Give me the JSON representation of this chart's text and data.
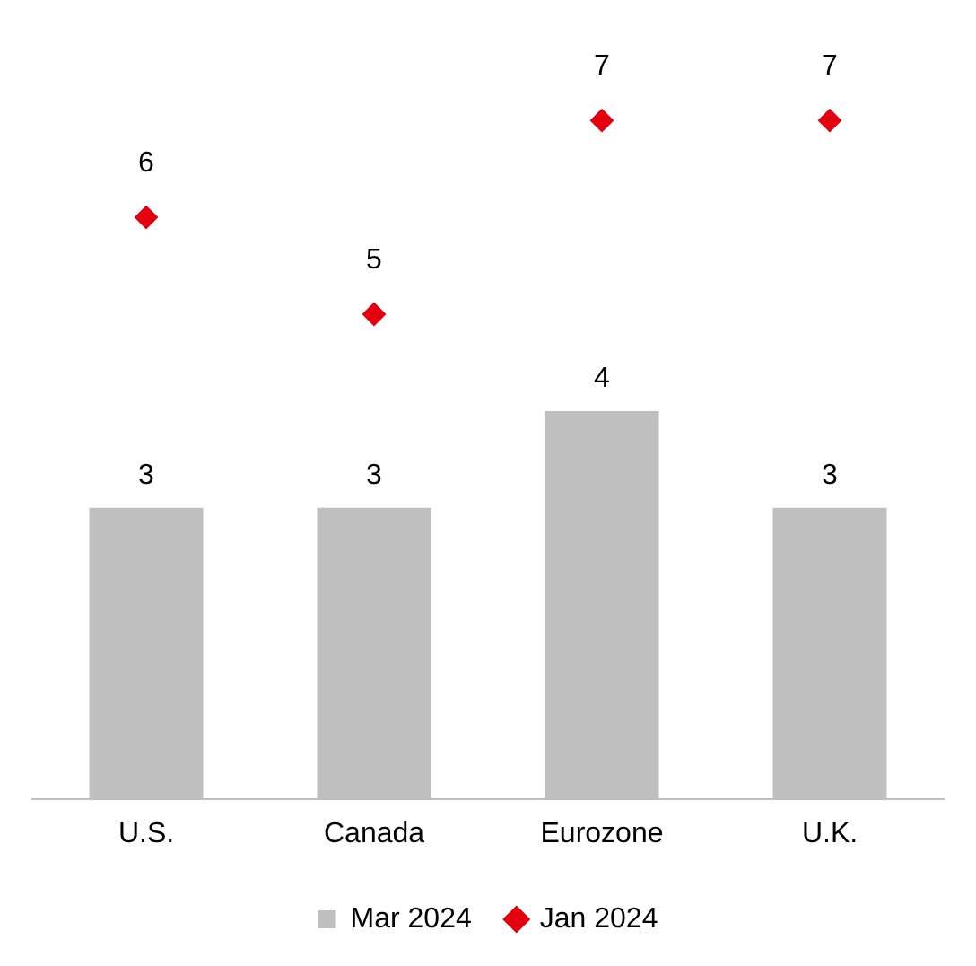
{
  "chart_data": {
    "type": "bar",
    "categories": [
      "U.S.",
      "Canada",
      "Eurozone",
      "U.K."
    ],
    "series": [
      {
        "name": "Mar 2024",
        "color": "#bfbfbf",
        "values": [
          3,
          3,
          4,
          3
        ]
      },
      {
        "name": "Jan 2024",
        "type": "scatter",
        "color": "#e3000f",
        "x": [
          "U.S.",
          "Canada",
          "Eurozone",
          "U.K."
        ],
        "values": [
          6,
          5,
          7,
          7
        ],
        "marker": "diamond"
      }
    ],
    "data_labels": true,
    "legend": "bottom",
    "grid": false
  }
}
